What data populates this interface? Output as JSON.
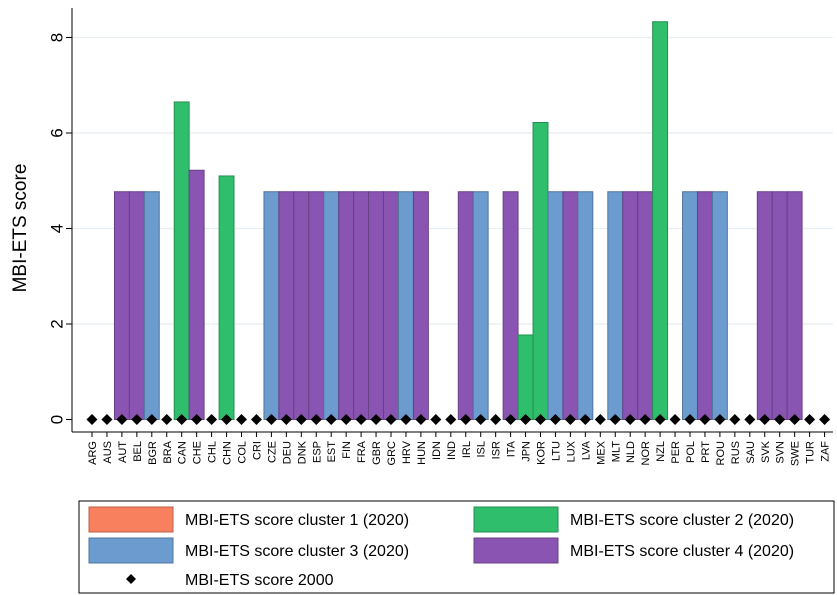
{
  "chart_data": {
    "type": "bar",
    "ylabel": "MBI-ETS score",
    "xlabel": "",
    "ylim": [
      0,
      8.6
    ],
    "yticks": [
      0,
      2,
      4,
      6,
      8
    ],
    "grid": true,
    "legend_position": "bottom",
    "categories": [
      "ARG",
      "AUS",
      "AUT",
      "BEL",
      "BGR",
      "BRA",
      "CAN",
      "CHE",
      "CHL",
      "CHN",
      "COL",
      "CRI",
      "CZE",
      "DEU",
      "DNK",
      "ESP",
      "EST",
      "FIN",
      "FRA",
      "GBR",
      "GRC",
      "HRV",
      "HUN",
      "IDN",
      "IND",
      "IRL",
      "ISL",
      "ISR",
      "ITA",
      "JPN",
      "KOR",
      "LTU",
      "LUX",
      "LVA",
      "MEX",
      "MLT",
      "NLD",
      "NOR",
      "NZL",
      "PER",
      "POL",
      "PRT",
      "ROU",
      "RUS",
      "SAU",
      "SVK",
      "SVN",
      "SWE",
      "TUR",
      "ZAF"
    ],
    "series": [
      {
        "name": "MBI-ETS score cluster 1 (2020)",
        "color": "#f9805f",
        "values": [
          0,
          0,
          0,
          0,
          0,
          0,
          0,
          0,
          0,
          0,
          0,
          0,
          0,
          0,
          0,
          0,
          0,
          0,
          0,
          0,
          0,
          0,
          0,
          0,
          0,
          0,
          0,
          0,
          0,
          0,
          0,
          0,
          0,
          0,
          0,
          0,
          0,
          0,
          0,
          0,
          0,
          0,
          0,
          0,
          0,
          0,
          0,
          0,
          0,
          0
        ]
      },
      {
        "name": "MBI-ETS score cluster 2 (2020)",
        "color": "#2fbe6c",
        "values": [
          0,
          0,
          0,
          0,
          0,
          0,
          6.65,
          0,
          0,
          5.1,
          0,
          0,
          0,
          0,
          0,
          0,
          0,
          0,
          0,
          0,
          0,
          0,
          0,
          0,
          0,
          0,
          0,
          0,
          0,
          1.77,
          6.22,
          0,
          0,
          0,
          0,
          0,
          0,
          0,
          8.33,
          0,
          0,
          0,
          0,
          0,
          0,
          0,
          0,
          0,
          0,
          0
        ]
      },
      {
        "name": "MBI-ETS score cluster 3 (2020)",
        "color": "#6c9bcf",
        "values": [
          0,
          0,
          0,
          0,
          4.77,
          0,
          0,
          0,
          0,
          0,
          0,
          0,
          4.77,
          0,
          0,
          0,
          4.77,
          0,
          0,
          0,
          0,
          4.77,
          0,
          0,
          0,
          0,
          4.77,
          0,
          0,
          0,
          0,
          4.77,
          0,
          4.77,
          0,
          4.77,
          0,
          0,
          0,
          0,
          4.77,
          0,
          4.77,
          0,
          0,
          0,
          0,
          0,
          0,
          0
        ]
      },
      {
        "name": "MBI-ETS score cluster 4 (2020)",
        "color": "#8a55b2",
        "values": [
          0,
          0,
          4.77,
          4.77,
          0,
          0,
          0,
          5.22,
          0,
          0,
          0,
          0,
          0,
          4.77,
          4.77,
          4.77,
          0,
          4.77,
          4.77,
          4.77,
          4.77,
          0,
          4.77,
          0,
          0,
          4.77,
          0,
          0,
          4.77,
          0,
          0,
          0,
          4.77,
          0,
          0,
          0,
          4.77,
          4.77,
          0,
          0,
          0,
          4.77,
          0,
          0,
          0,
          4.77,
          4.77,
          4.77,
          0,
          0
        ]
      },
      {
        "name": "MBI-ETS score 2000",
        "marker": "diamond",
        "color": "#000000",
        "values": [
          0,
          0,
          0,
          0,
          0,
          0,
          0,
          0,
          0,
          0,
          0,
          0,
          0,
          0,
          0,
          0,
          0,
          0,
          0,
          0,
          0,
          0,
          0,
          0,
          0,
          0,
          0,
          0,
          0,
          0,
          0,
          0,
          0,
          0,
          0,
          0,
          0,
          0,
          0,
          0,
          0,
          0,
          0,
          0,
          0,
          0,
          0,
          0,
          0,
          0
        ]
      }
    ]
  }
}
